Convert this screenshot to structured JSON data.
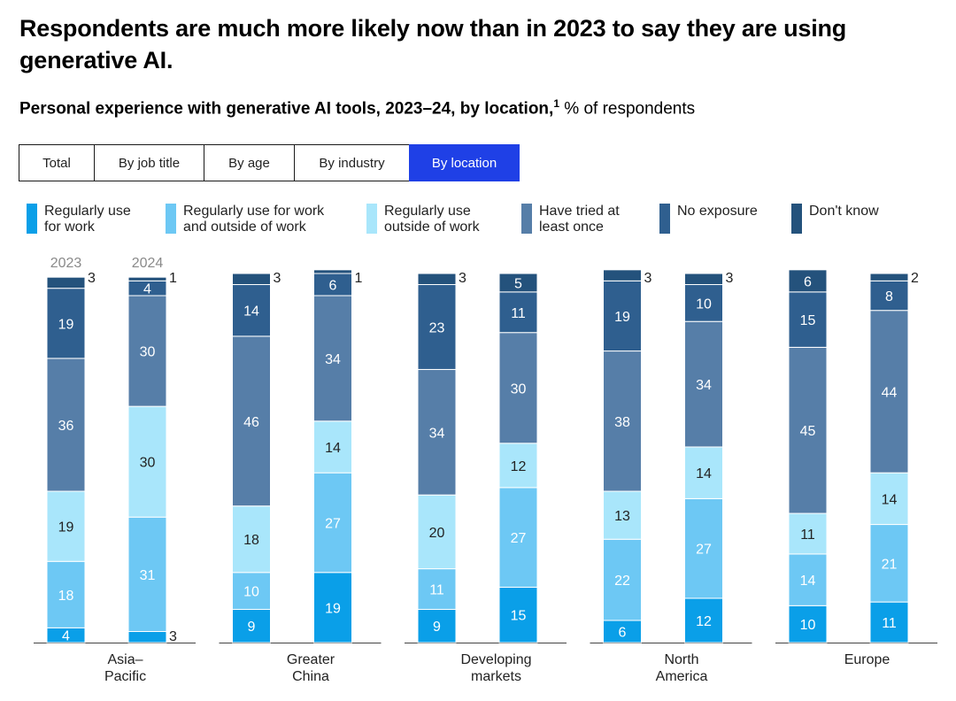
{
  "title": "Respondents are much more likely now than in 2023 to say they are using generative AI.",
  "subtitle": {
    "bold": "Personal experience with generative AI tools, 2023–24, by location,",
    "footnote": "1",
    "unit": "% of respondents"
  },
  "tabs": [
    {
      "label": "Total",
      "active": false
    },
    {
      "label": "By job title",
      "active": false
    },
    {
      "label": "By age",
      "active": false
    },
    {
      "label": "By industry",
      "active": false
    },
    {
      "label": "By location",
      "active": true
    }
  ],
  "legend": [
    {
      "label": "Regularly use for work",
      "color": "#0a9fe8"
    },
    {
      "label": "Regularly use for work and outside of work",
      "color": "#6dc8f4"
    },
    {
      "label": "Regularly use outside of work",
      "color": "#a9e6fb"
    },
    {
      "label": "Have tried at least once",
      "color": "#567ea8"
    },
    {
      "label": "No exposure",
      "color": "#2f5f8f"
    },
    {
      "label": "Don't know",
      "color": "#24527c"
    }
  ],
  "chart_data": {
    "type": "bar",
    "stacked": true,
    "unit": "% of respondents",
    "year_labels": [
      "2023",
      "2024"
    ],
    "categories": [
      "Asia–Pacific",
      "Greater China",
      "Developing markets",
      "North America",
      "Europe"
    ],
    "series": [
      {
        "name": "Regularly use for work",
        "color": "#0a9fe8",
        "values": [
          [
            4,
            3
          ],
          [
            9,
            19
          ],
          [
            9,
            15
          ],
          [
            6,
            12
          ],
          [
            10,
            11
          ]
        ]
      },
      {
        "name": "Regularly use for work and outside of work",
        "color": "#6dc8f4",
        "values": [
          [
            18,
            31
          ],
          [
            10,
            27
          ],
          [
            11,
            27
          ],
          [
            22,
            27
          ],
          [
            14,
            21
          ]
        ]
      },
      {
        "name": "Regularly use outside of work",
        "color": "#a9e6fb",
        "values": [
          [
            19,
            30
          ],
          [
            18,
            14
          ],
          [
            20,
            12
          ],
          [
            13,
            14
          ],
          [
            11,
            14
          ]
        ]
      },
      {
        "name": "Have tried at least once",
        "color": "#567ea8",
        "values": [
          [
            36,
            30
          ],
          [
            46,
            34
          ],
          [
            34,
            30
          ],
          [
            38,
            34
          ],
          [
            45,
            44
          ]
        ]
      },
      {
        "name": "No exposure",
        "color": "#2f5f8f",
        "values": [
          [
            19,
            4
          ],
          [
            14,
            6
          ],
          [
            23,
            11
          ],
          [
            19,
            10
          ],
          [
            15,
            8
          ]
        ]
      },
      {
        "name": "Don't know",
        "color": "#24527c",
        "values": [
          [
            3,
            1
          ],
          [
            3,
            1
          ],
          [
            3,
            5
          ],
          [
            3,
            3
          ],
          [
            6,
            2
          ]
        ]
      }
    ]
  }
}
